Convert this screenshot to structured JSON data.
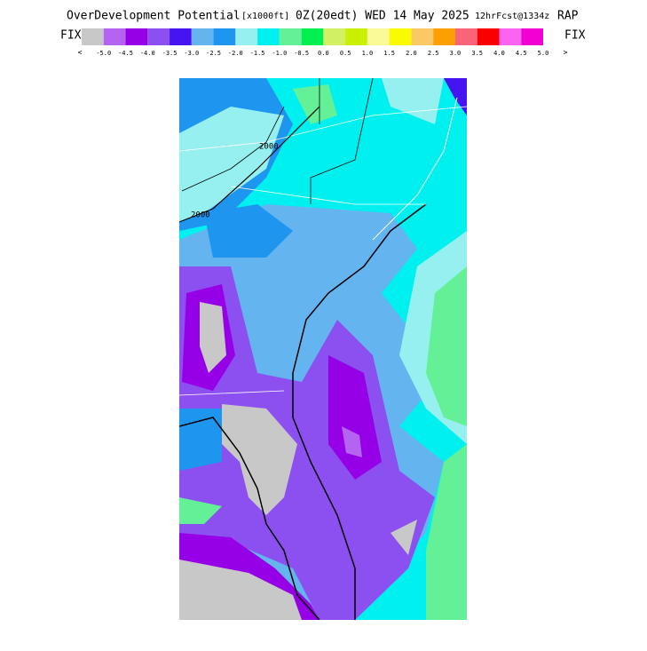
{
  "header": {
    "title": "OverDevelopment Potential",
    "units": "[x1000ft]",
    "valid": "0Z(20edt) WED 14 May 2025",
    "forecast": "12hrFcst@1334z",
    "model": "RAP"
  },
  "colorbar": {
    "left_label": "FIX",
    "right_label": "FIX",
    "left_arrow": "<",
    "right_arrow": ">",
    "colors": [
      "#c8c8c8",
      "#b464f0",
      "#9600e6",
      "#8c50f0",
      "#4614f0",
      "#64b4f0",
      "#1e96f0",
      "#96f0f0",
      "#00f0f0",
      "#64f096",
      "#00f050",
      "#d2f064",
      "#c8f000",
      "#fafa96",
      "#fafa00",
      "#fac864",
      "#faa000",
      "#fa6478",
      "#fa0000",
      "#fa64f0",
      "#f000d2"
    ],
    "labels": [
      "-5.0",
      "-4.5",
      "-4.0",
      "-3.5",
      "-3.0",
      "-2.5",
      "-2.0",
      "-1.5",
      "-1.0",
      "-0.5",
      "0.0",
      "0.5",
      "1.0",
      "1.5",
      "2.0",
      "2.5",
      "3.0",
      "3.5",
      "4.0",
      "4.5",
      "5.0"
    ]
  },
  "map": {
    "contour_labels": [
      "2000",
      "2000"
    ]
  }
}
